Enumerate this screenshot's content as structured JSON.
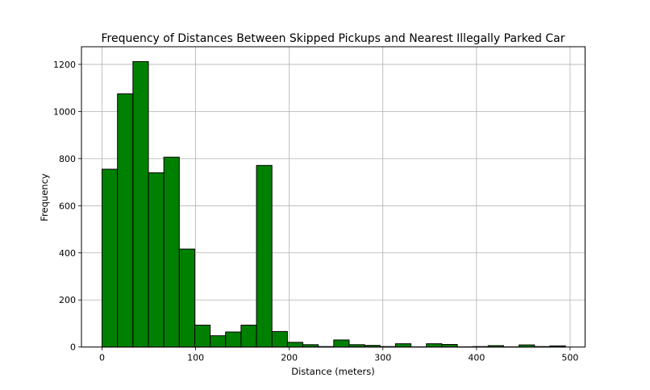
{
  "chart_data": {
    "type": "bar",
    "subtype": "histogram",
    "title": "Frequency of Distances Between Skipped Pickups and Nearest Illegally Parked Car",
    "xlabel": "Distance (meters)",
    "ylabel": "Frequency",
    "xlim": [
      -22,
      516
    ],
    "ylim": [
      0,
      1275
    ],
    "xticks": [
      0,
      100,
      200,
      300,
      400,
      500
    ],
    "yticks": [
      0,
      200,
      400,
      600,
      800,
      1000,
      1200
    ],
    "grid": true,
    "legend": null,
    "bar_color": "#008000",
    "edge_color": "#000000",
    "bin_start": 0,
    "bin_width": 16.5,
    "bins": 30,
    "values": [
      755,
      1075,
      1212,
      740,
      806,
      416,
      93,
      48,
      64,
      93,
      771,
      66,
      20,
      10,
      2,
      30,
      10,
      7,
      2,
      14,
      1,
      14,
      11,
      1,
      2,
      6,
      1,
      9,
      2,
      5
    ]
  }
}
